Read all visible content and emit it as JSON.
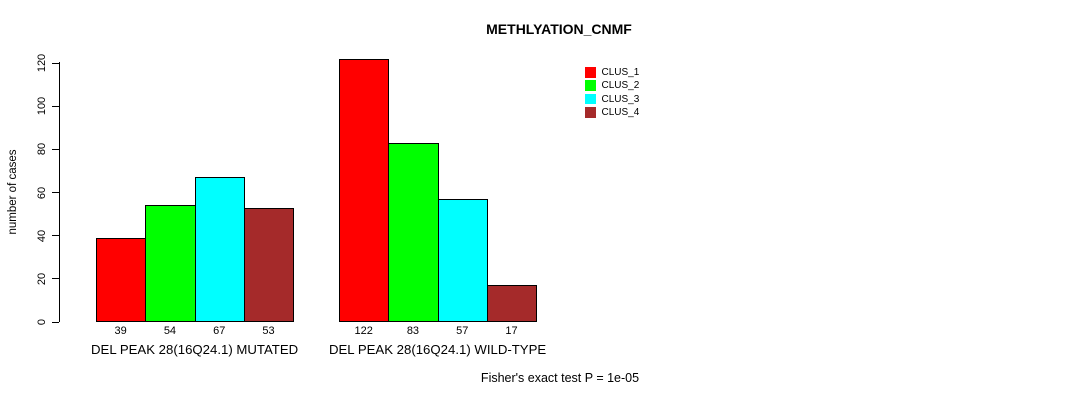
{
  "chart_data": {
    "type": "bar",
    "title": "METHLYATION_CNMF",
    "ylabel": "number of cases",
    "ylim": [
      0,
      120
    ],
    "yticks": [
      0,
      20,
      40,
      60,
      80,
      100,
      120
    ],
    "categories": [
      "DEL PEAK 28(16Q24.1) MUTATED",
      "DEL PEAK 28(16Q24.1) WILD-TYPE"
    ],
    "series": [
      {
        "name": "CLUS_1",
        "color": "#FF0000",
        "values": [
          39,
          122
        ]
      },
      {
        "name": "CLUS_2",
        "color": "#00FF00",
        "values": [
          54,
          83
        ]
      },
      {
        "name": "CLUS_3",
        "color": "#00FFFF",
        "values": [
          67,
          57
        ]
      },
      {
        "name": "CLUS_4",
        "color": "#A52A2A",
        "values": [
          53,
          17
        ]
      }
    ],
    "show_bar_values": true,
    "legend_position": "top-right",
    "grid": false,
    "footnote": "Fisher's exact test P = 1e-05"
  }
}
